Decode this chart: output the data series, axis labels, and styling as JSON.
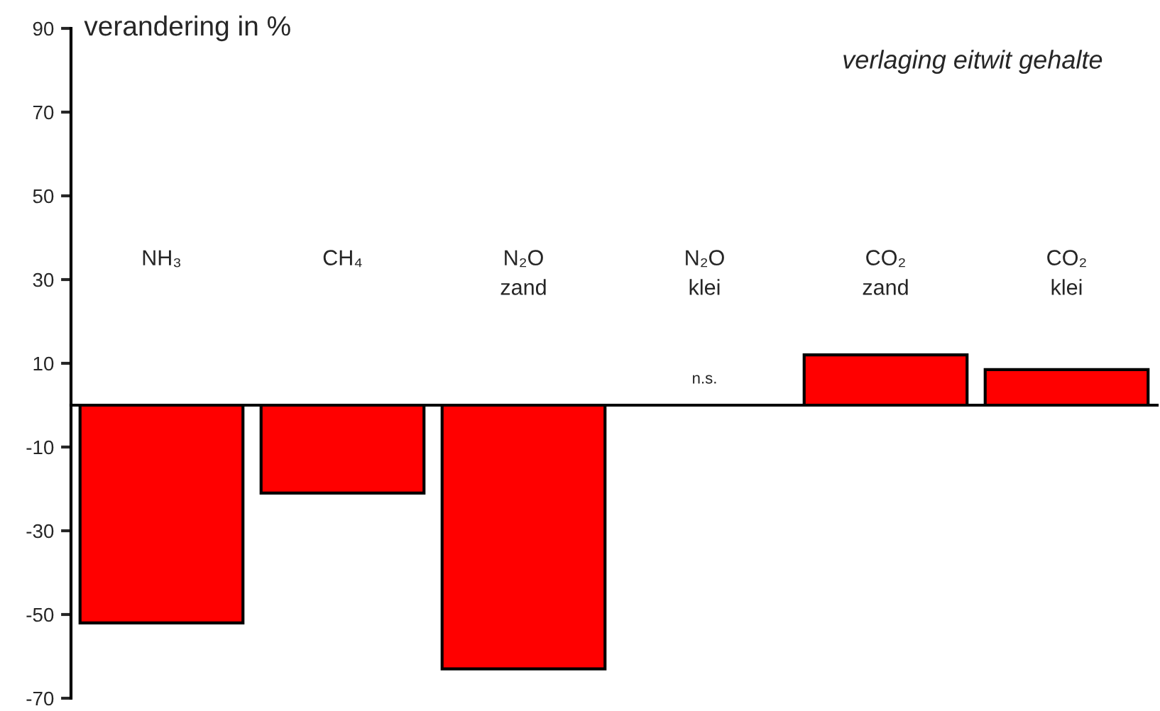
{
  "chart_data": {
    "type": "bar",
    "title": "verlaging eitwit gehalte",
    "ylabel": "verandering in %",
    "categories": [
      "NH₃",
      "CH₄",
      "N₂O\nzand",
      "N₂O\nklei",
      "CO₂\nzand",
      "CO₂\nklei"
    ],
    "values": [
      -52,
      -21,
      -63,
      null,
      12,
      8.5
    ],
    "color": "#ff0000",
    "ylim": [
      -70,
      90
    ],
    "yticks": [
      -70,
      -50,
      -30,
      -10,
      10,
      30,
      50,
      70,
      90
    ],
    "grid": false,
    "legend": false,
    "annotations": [
      "n.s."
    ]
  }
}
